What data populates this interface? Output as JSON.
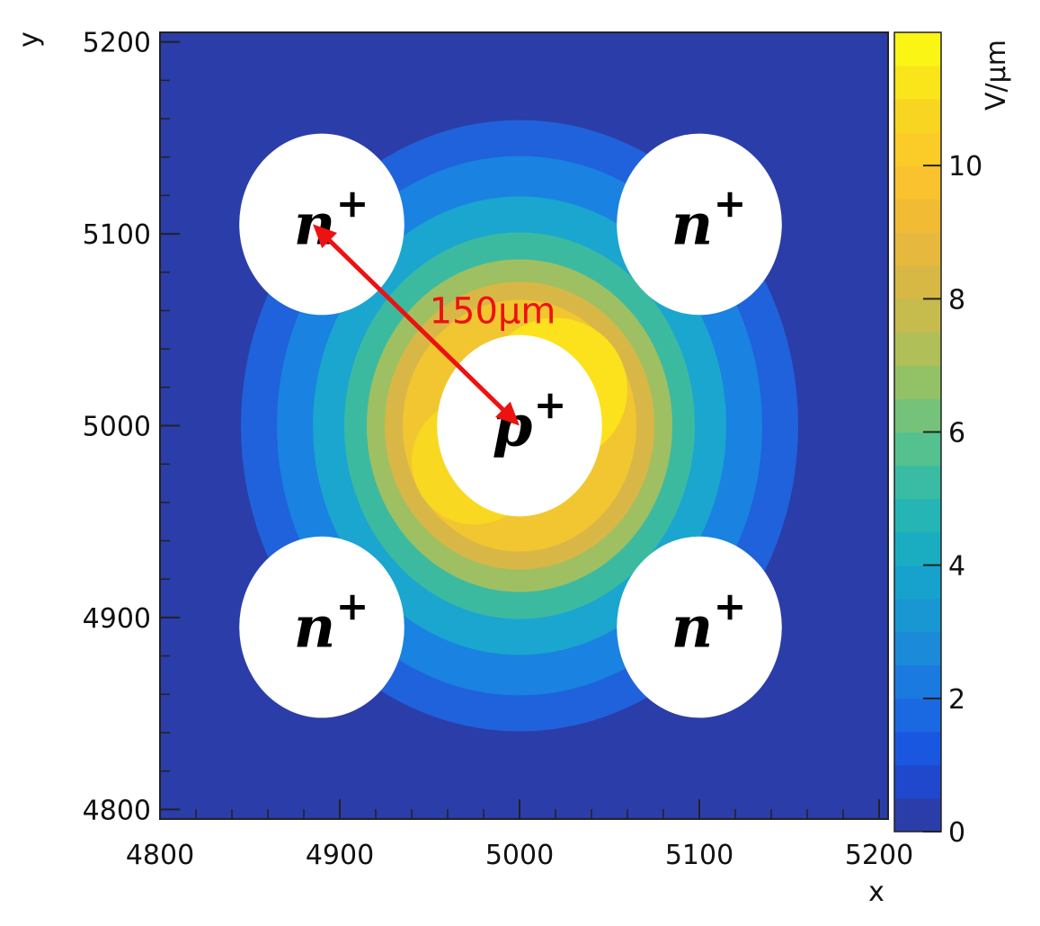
{
  "chart_data": {
    "type": "heatmap",
    "title": "",
    "xlabel": "x",
    "ylabel": "y",
    "xlim": [
      4800,
      5205
    ],
    "ylim": [
      4795,
      5205
    ],
    "x_ticks": [
      4800,
      4900,
      5000,
      5100,
      5200
    ],
    "y_ticks": [
      4800,
      4900,
      5000,
      5100,
      5200
    ],
    "colorbar": {
      "label": "V/µm",
      "range": [
        0,
        12
      ],
      "ticks": [
        0,
        2,
        4,
        6,
        8,
        10
      ],
      "levels": 24,
      "colormap": "parula"
    },
    "field_max_center": {
      "x": 5000,
      "y": 5000
    },
    "electrodes": [
      {
        "label": "n",
        "sup": "+",
        "x": 4890,
        "y": 5105,
        "r": 45
      },
      {
        "label": "n",
        "sup": "+",
        "x": 5100,
        "y": 5105,
        "r": 45
      },
      {
        "label": "p",
        "sup": "+",
        "x": 5000,
        "y": 5000,
        "r": 45
      },
      {
        "label": "n",
        "sup": "+",
        "x": 4890,
        "y": 4895,
        "r": 45
      },
      {
        "label": "n",
        "sup": "+",
        "x": 5100,
        "y": 4895,
        "r": 45
      }
    ],
    "annotation": {
      "text": "150μm",
      "color": "#ee1111",
      "from": {
        "x": 4885,
        "y": 5105
      },
      "to": {
        "x": 5000,
        "y": 5000
      }
    }
  },
  "colors": {
    "background_field": "#2b3da8",
    "arrow": "#ee1111"
  }
}
